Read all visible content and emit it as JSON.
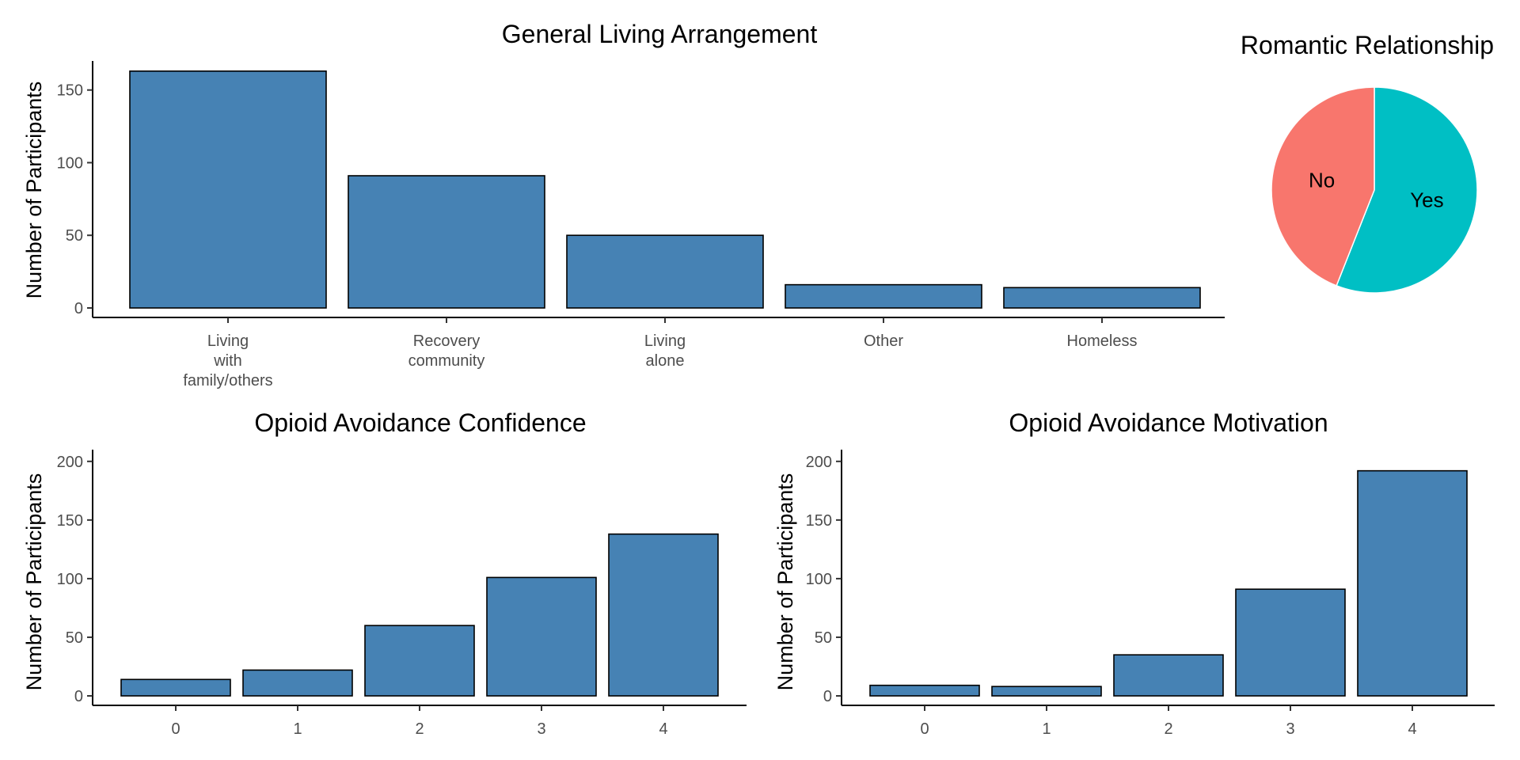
{
  "chart_data": [
    {
      "id": "living",
      "type": "bar",
      "title": "General Living Arrangement",
      "ylabel": "Number of Participants",
      "xlabel": "",
      "categories": [
        [
          "Living",
          "with",
          "family/others"
        ],
        [
          "Recovery",
          "community"
        ],
        [
          "Living",
          "alone"
        ],
        [
          "Other"
        ],
        [
          "Homeless"
        ]
      ],
      "values": [
        163,
        91,
        50,
        16,
        14
      ],
      "ylim": [
        0,
        170
      ],
      "yticks": [
        0,
        50,
        100,
        150
      ],
      "bar_color": "#4682b4",
      "grid": false
    },
    {
      "id": "confidence",
      "type": "bar",
      "title": "Opioid Avoidance Confidence",
      "ylabel": "Number of Participants",
      "xlabel": "",
      "categories": [
        [
          "0"
        ],
        [
          "1"
        ],
        [
          "2"
        ],
        [
          "3"
        ],
        [
          "4"
        ]
      ],
      "values": [
        14,
        22,
        60,
        101,
        138
      ],
      "ylim": [
        0,
        210
      ],
      "yticks": [
        0,
        50,
        100,
        150,
        200
      ],
      "bar_color": "#4682b4",
      "grid": false
    },
    {
      "id": "motivation",
      "type": "bar",
      "title": "Opioid Avoidance Motivation",
      "ylabel": "Number of Participants",
      "xlabel": "",
      "categories": [
        [
          "0"
        ],
        [
          "1"
        ],
        [
          "2"
        ],
        [
          "3"
        ],
        [
          "4"
        ]
      ],
      "values": [
        9,
        8,
        35,
        91,
        192
      ],
      "ylim": [
        0,
        210
      ],
      "yticks": [
        0,
        50,
        100,
        150,
        200
      ],
      "bar_color": "#4682b4",
      "grid": false
    },
    {
      "id": "romantic",
      "type": "pie",
      "title": "Romantic Relationship",
      "slices": [
        {
          "label": "Yes",
          "value": 56,
          "color": "#00bfc4"
        },
        {
          "label": "No",
          "value": 44,
          "color": "#f8766d"
        }
      ]
    }
  ]
}
